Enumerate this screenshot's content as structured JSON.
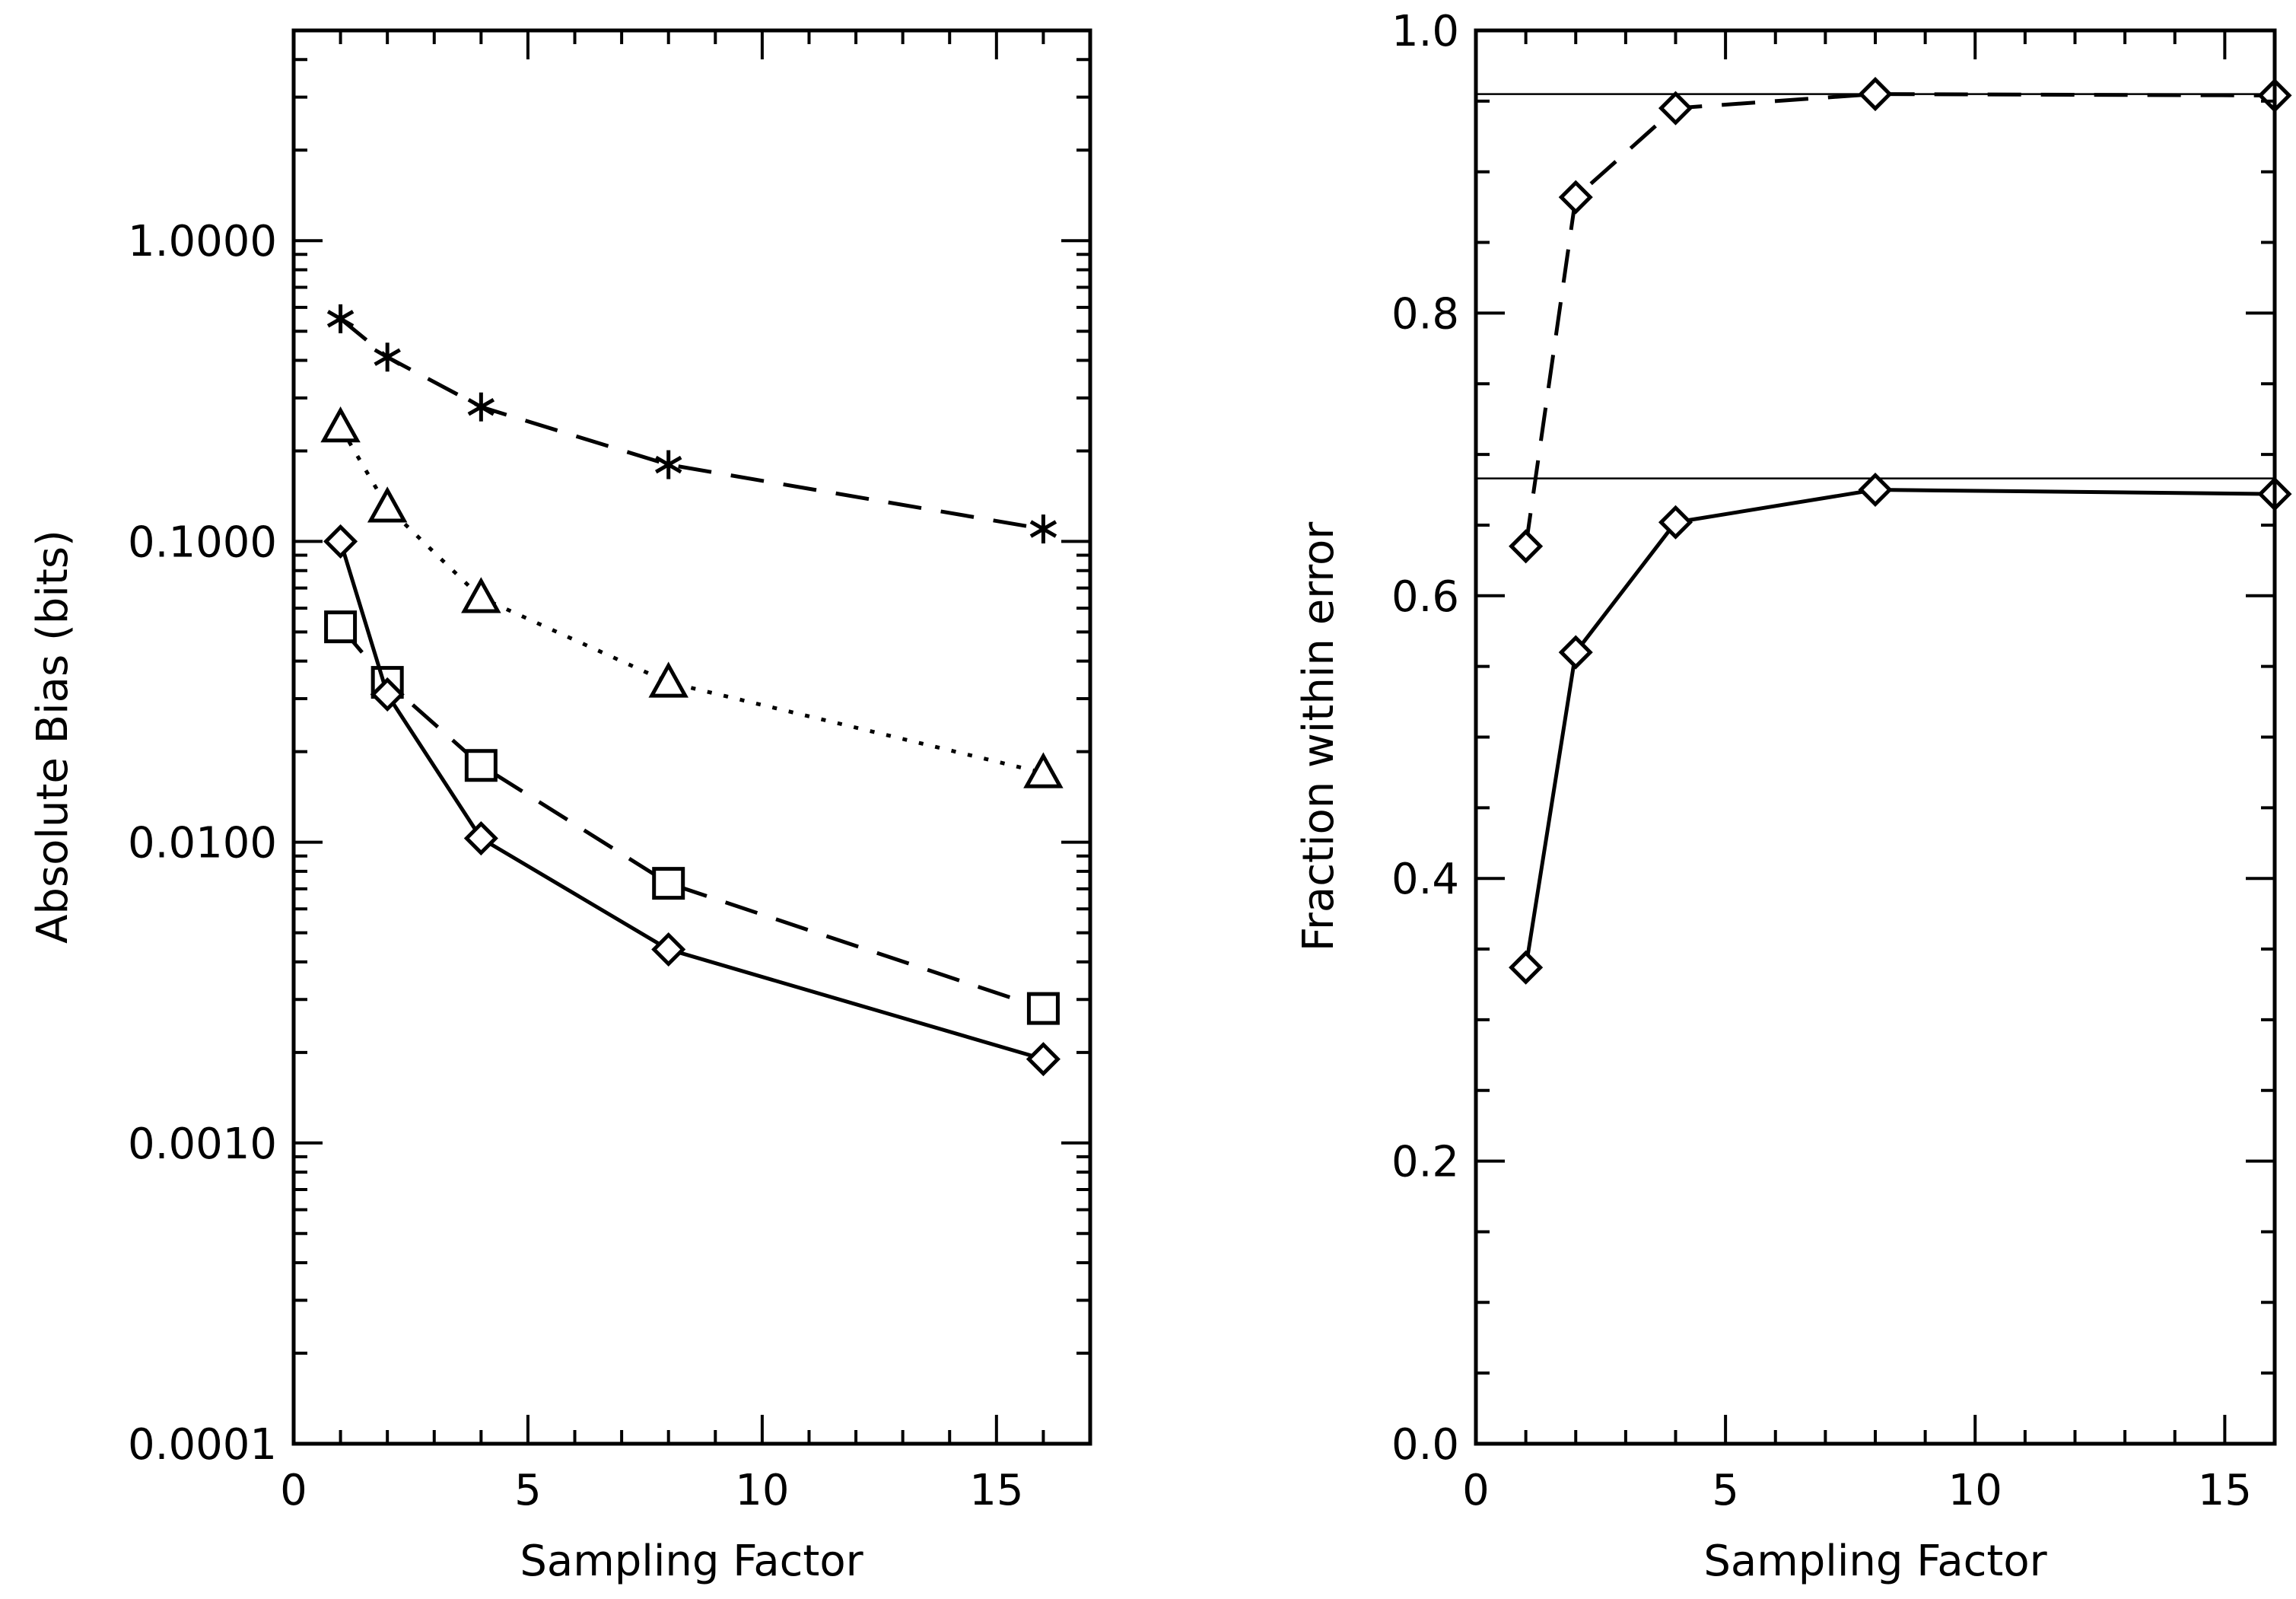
{
  "chart_data": [
    {
      "type": "line",
      "panel": "left",
      "title": "",
      "xlabel": "Sampling Factor",
      "ylabel": "Absolute Bias (bits)",
      "xlim": [
        0,
        17
      ],
      "ylim": [
        0.0001,
        5.0
      ],
      "yscale": "log",
      "xticks": [
        0,
        5,
        10,
        15
      ],
      "xtick_labels": [
        "0",
        "5",
        "10",
        "15"
      ],
      "yticks": [
        0.0001,
        0.001,
        0.01,
        0.1,
        1.0
      ],
      "ytick_labels": [
        "0.0001",
        "0.0010",
        "0.0100",
        "0.1000",
        "1.0000"
      ],
      "grid": false,
      "series": [
        {
          "name": "asterisk-dashed",
          "marker": "asterisk",
          "line": "dashed",
          "x": [
            1,
            2,
            4,
            8,
            16
          ],
          "y": [
            0.55,
            0.41,
            0.28,
            0.18,
            0.11
          ]
        },
        {
          "name": "triangle-dotted",
          "marker": "triangle",
          "line": "dotted",
          "x": [
            1,
            2,
            4,
            8,
            16
          ],
          "y": [
            0.24,
            0.13,
            0.065,
            0.034,
            0.017
          ]
        },
        {
          "name": "square-dashed",
          "marker": "square",
          "line": "dashed",
          "x": [
            1,
            2,
            4,
            8,
            16
          ],
          "y": [
            0.052,
            0.034,
            0.018,
            0.0073,
            0.0028
          ]
        },
        {
          "name": "diamond-solid",
          "marker": "diamond",
          "line": "solid",
          "x": [
            1,
            2,
            4,
            8,
            16
          ],
          "y": [
            0.1,
            0.031,
            0.0103,
            0.0044,
            0.0019
          ]
        }
      ]
    },
    {
      "type": "line",
      "panel": "right",
      "title": "",
      "xlabel": "Sampling Factor",
      "ylabel": "Fraction within error",
      "xlim": [
        0,
        16
      ],
      "ylim": [
        0.0,
        1.0
      ],
      "yscale": "linear",
      "xticks": [
        0,
        5,
        10,
        15
      ],
      "xtick_labels": [
        "0",
        "5",
        "10",
        "15"
      ],
      "yticks": [
        0.0,
        0.2,
        0.4,
        0.6,
        0.8,
        1.0
      ],
      "ytick_labels": [
        "0.0",
        "0.2",
        "0.4",
        "0.6",
        "0.8",
        "1.0"
      ],
      "grid": false,
      "reference_lines": [
        0.955,
        0.683
      ],
      "series": [
        {
          "name": "diamond-dashed",
          "marker": "diamond",
          "line": "dashed",
          "x": [
            1,
            2,
            4,
            8,
            16
          ],
          "y": [
            0.635,
            0.882,
            0.945,
            0.955,
            0.954
          ]
        },
        {
          "name": "diamond-solid",
          "marker": "diamond",
          "line": "solid",
          "x": [
            1,
            2,
            4,
            8,
            16
          ],
          "y": [
            0.337,
            0.56,
            0.652,
            0.675,
            0.672
          ]
        }
      ]
    }
  ]
}
